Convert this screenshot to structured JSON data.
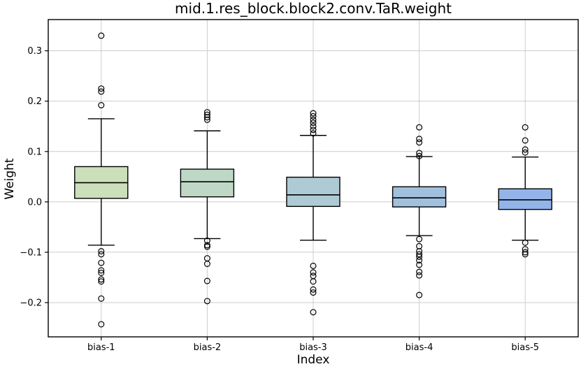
{
  "chart_data": {
    "type": "boxplot",
    "title": "mid.1.res_block.block2.conv.TaR.weight",
    "xlabel": "Index",
    "ylabel": "Weight",
    "categories": [
      "bias-1",
      "bias-2",
      "bias-3",
      "bias-4",
      "bias-5"
    ],
    "ylim": [
      -0.268,
      0.362
    ],
    "yticks": [
      0.3,
      0.2,
      0.1,
      0.0,
      -0.1,
      -0.2
    ],
    "grid": true,
    "grid_color": "#cccccc",
    "spine_color": "#000000",
    "edge_color": "#000000",
    "box_colors": [
      "#cbdfba",
      "#bfd8c6",
      "#aecbd5",
      "#a1c0de",
      "#93b4e9"
    ],
    "series": [
      {
        "name": "bias-1",
        "whislo": -0.086,
        "q1": 0.007,
        "med": 0.038,
        "q3": 0.07,
        "whishi": 0.165,
        "outliers": [
          0.33,
          0.225,
          0.219,
          0.192,
          -0.098,
          -0.104,
          -0.121,
          -0.136,
          -0.141,
          -0.154,
          -0.158,
          -0.192,
          -0.243
        ]
      },
      {
        "name": "bias-2",
        "whislo": -0.073,
        "q1": 0.01,
        "med": 0.04,
        "q3": 0.065,
        "whishi": 0.141,
        "outliers": [
          0.178,
          0.173,
          0.168,
          0.163,
          -0.077,
          -0.086,
          -0.089,
          -0.112,
          -0.123,
          -0.157,
          -0.197
        ]
      },
      {
        "name": "bias-3",
        "whislo": -0.076,
        "q1": -0.009,
        "med": 0.014,
        "q3": 0.049,
        "whishi": 0.132,
        "outliers": [
          0.176,
          0.17,
          0.163,
          0.157,
          0.15,
          0.143,
          0.136,
          -0.127,
          -0.14,
          -0.147,
          -0.158,
          -0.174,
          -0.18,
          -0.219
        ]
      },
      {
        "name": "bias-4",
        "whislo": -0.067,
        "q1": -0.01,
        "med": 0.008,
        "q3": 0.03,
        "whishi": 0.09,
        "outliers": [
          0.148,
          0.125,
          0.118,
          0.097,
          0.091,
          -0.074,
          -0.088,
          -0.098,
          -0.104,
          -0.109,
          -0.116,
          -0.125,
          -0.139,
          -0.146,
          -0.185
        ]
      },
      {
        "name": "bias-5",
        "whislo": -0.076,
        "q1": -0.015,
        "med": 0.004,
        "q3": 0.026,
        "whishi": 0.089,
        "outliers": [
          0.148,
          0.122,
          0.104,
          0.098,
          -0.081,
          -0.094,
          -0.1,
          -0.104
        ]
      }
    ]
  }
}
